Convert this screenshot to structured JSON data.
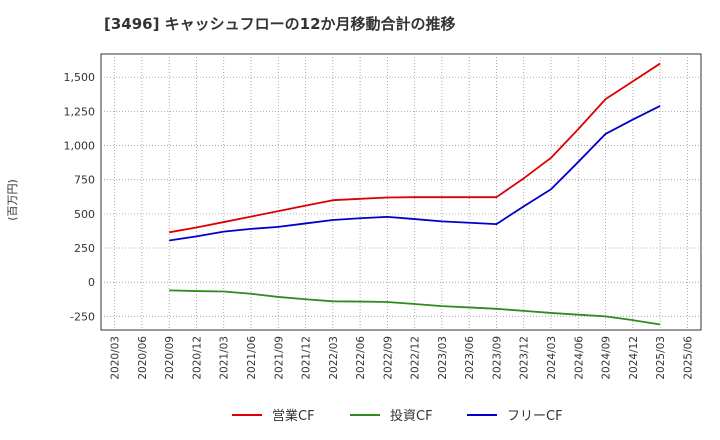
{
  "chart_data": {
    "type": "line",
    "title": "[3496]  キャッシュフローの12か月移動合計の推移",
    "ylabel": "(百万円)",
    "xlabel": "",
    "ylim": [
      -350,
      1670
    ],
    "yticks": [
      -250,
      0,
      250,
      500,
      750,
      1000,
      1250,
      1500
    ],
    "ytick_labels": [
      "-250",
      "0",
      "250",
      "500",
      "750",
      "1,000",
      "1,250",
      "1,500"
    ],
    "categories": [
      "2020/03",
      "2020/06",
      "2020/09",
      "2020/12",
      "2021/03",
      "2021/06",
      "2021/09",
      "2021/12",
      "2022/03",
      "2022/06",
      "2022/09",
      "2022/12",
      "2023/03",
      "2023/06",
      "2023/09",
      "2023/12",
      "2024/03",
      "2024/06",
      "2024/09",
      "2024/12",
      "2025/03",
      "2025/06"
    ],
    "grid": true,
    "legend_position": "bottom",
    "series": [
      {
        "name": "営業CF",
        "color": "#dd0000",
        "values": [
          null,
          null,
          365,
          400,
          440,
          480,
          520,
          560,
          600,
          610,
          620,
          622,
          622,
          622,
          622,
          760,
          910,
          1120,
          1340,
          1470,
          1600,
          null
        ]
      },
      {
        "name": "投資CF",
        "color": "#2e8b1e",
        "values": [
          null,
          null,
          -60,
          -65,
          -68,
          -85,
          -108,
          -125,
          -140,
          -142,
          -145,
          -160,
          -175,
          -185,
          -195,
          -210,
          -225,
          -238,
          -250,
          -278,
          -310,
          null
        ]
      },
      {
        "name": "フリーCF",
        "color": "#0000cc",
        "values": [
          null,
          null,
          305,
          335,
          370,
          390,
          405,
          430,
          455,
          468,
          478,
          462,
          445,
          435,
          425,
          555,
          680,
          880,
          1085,
          1190,
          1290,
          null
        ]
      }
    ]
  }
}
